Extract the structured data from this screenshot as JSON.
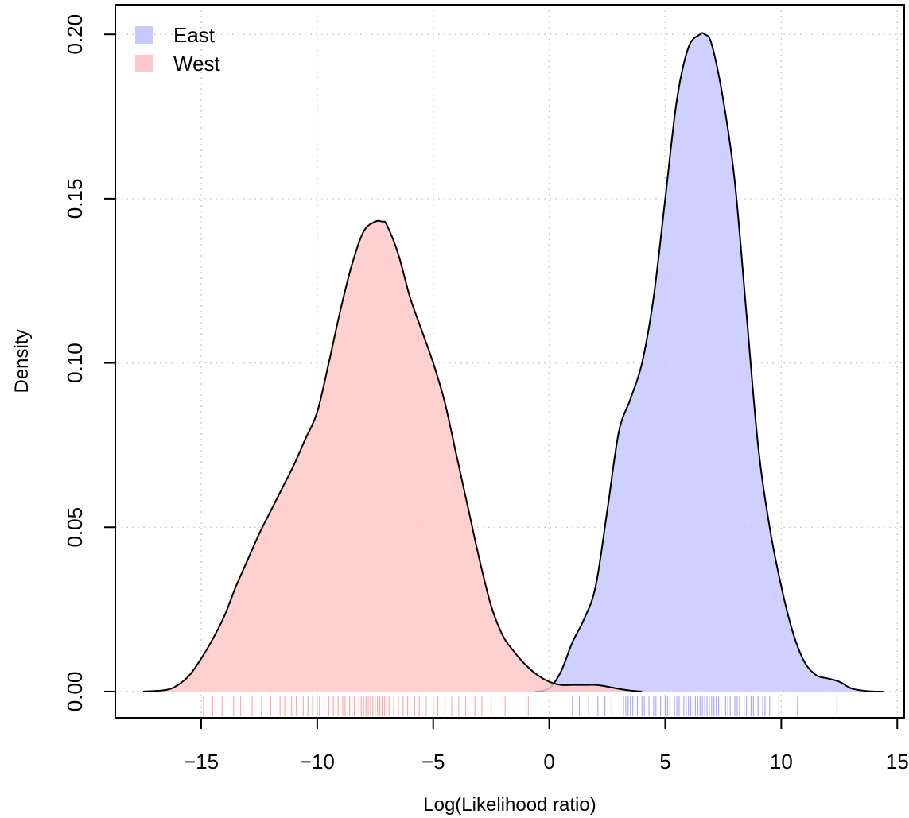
{
  "chart_data": {
    "type": "area",
    "title": "",
    "xlabel": "Log(Likelihood ratio)",
    "ylabel": "Density",
    "xlim": [
      -18.7,
      15.3
    ],
    "ylim": [
      -0.008,
      0.209
    ],
    "xticks": [
      -15,
      -10,
      -5,
      0,
      5,
      10,
      15
    ],
    "xtick_labels": [
      "−15",
      "−10",
      "−5",
      "0",
      "5",
      "10",
      "15"
    ],
    "yticks": [
      0.0,
      0.05,
      0.1,
      0.15,
      0.2
    ],
    "ytick_labels": [
      "0.00",
      "0.05",
      "0.10",
      "0.15",
      "0.20"
    ],
    "grid": true,
    "legend_position": "top-left",
    "series": [
      {
        "name": "East",
        "color": "#c8c8ff",
        "x": [
          -0.6,
          0,
          0.5,
          1,
          1.5,
          2,
          2.5,
          3,
          3.5,
          4,
          4.5,
          5,
          5.5,
          6,
          6.5,
          6.7,
          7,
          7.5,
          8,
          8.5,
          9,
          9.5,
          10,
          10.5,
          11,
          11.5,
          12,
          12.5,
          13,
          13.5,
          14,
          14.4
        ],
        "y": [
          0.0,
          0.001,
          0.006,
          0.015,
          0.022,
          0.032,
          0.055,
          0.079,
          0.089,
          0.1,
          0.12,
          0.15,
          0.18,
          0.196,
          0.2,
          0.2,
          0.197,
          0.18,
          0.155,
          0.115,
          0.075,
          0.05,
          0.032,
          0.018,
          0.009,
          0.005,
          0.004,
          0.003,
          0.001,
          0.0003,
          0.0,
          0.0
        ]
      },
      {
        "name": "West",
        "color": "#ffc8c8",
        "x": [
          -17.5,
          -16.5,
          -16,
          -15.5,
          -15,
          -14.5,
          -14,
          -13.5,
          -13,
          -12.5,
          -12,
          -11.5,
          -11,
          -10.5,
          -10,
          -9.5,
          -9,
          -8.5,
          -8,
          -7.5,
          -7.2,
          -7,
          -6.5,
          -6,
          -5.5,
          -5,
          -4.5,
          -4,
          -3.5,
          -3,
          -2.5,
          -2,
          -1.5,
          -1,
          -0.5,
          0,
          0.5,
          1,
          1.5,
          2,
          2.5,
          3,
          3.5,
          4
        ],
        "y": [
          0.0,
          0.0005,
          0.002,
          0.005,
          0.01,
          0.016,
          0.023,
          0.032,
          0.04,
          0.048,
          0.055,
          0.062,
          0.069,
          0.077,
          0.085,
          0.1,
          0.116,
          0.13,
          0.14,
          0.143,
          0.143,
          0.142,
          0.133,
          0.12,
          0.11,
          0.1,
          0.088,
          0.072,
          0.056,
          0.04,
          0.026,
          0.017,
          0.012,
          0.008,
          0.005,
          0.003,
          0.002,
          0.002,
          0.002,
          0.002,
          0.0015,
          0.0008,
          0.0003,
          0.0
        ]
      }
    ],
    "rug": [
      {
        "series": "East",
        "color": "#aaaaff",
        "x": [
          1.0,
          1.3,
          1.7,
          2.1,
          2.4,
          2.7,
          3.2,
          3.3,
          3.4,
          3.5,
          3.6,
          3.8,
          4.0,
          4.1,
          4.3,
          4.5,
          4.6,
          4.8,
          5.0,
          5.1,
          5.2,
          5.4,
          5.5,
          5.6,
          5.8,
          5.9,
          6.0,
          6.1,
          6.2,
          6.3,
          6.4,
          6.5,
          6.6,
          6.7,
          6.8,
          6.9,
          7.0,
          7.1,
          7.2,
          7.3,
          7.4,
          7.6,
          7.7,
          7.8,
          8.0,
          8.1,
          8.2,
          8.4,
          8.5,
          8.7,
          8.8,
          9.0,
          9.2,
          9.3,
          9.5,
          9.9,
          10.7,
          12.4
        ]
      },
      {
        "series": "West",
        "color": "#ffaaaa",
        "x": [
          -14.9,
          -14.5,
          -14.1,
          -13.6,
          -13.3,
          -12.8,
          -12.4,
          -12.0,
          -11.6,
          -11.4,
          -11.1,
          -10.9,
          -10.6,
          -10.4,
          -10.2,
          -10.0,
          -9.9,
          -9.7,
          -9.5,
          -9.3,
          -9.1,
          -8.9,
          -8.8,
          -8.6,
          -8.5,
          -8.4,
          -8.2,
          -8.1,
          -8.0,
          -7.9,
          -7.8,
          -7.7,
          -7.6,
          -7.5,
          -7.4,
          -7.3,
          -7.2,
          -7.1,
          -7.0,
          -6.9,
          -6.7,
          -6.5,
          -6.3,
          -6.1,
          -5.8,
          -5.6,
          -5.3,
          -5.0,
          -4.8,
          -4.5,
          -4.2,
          -3.9,
          -3.6,
          -3.2,
          -2.9,
          -2.5,
          -1.9,
          -1.0,
          -0.9
        ]
      }
    ]
  }
}
